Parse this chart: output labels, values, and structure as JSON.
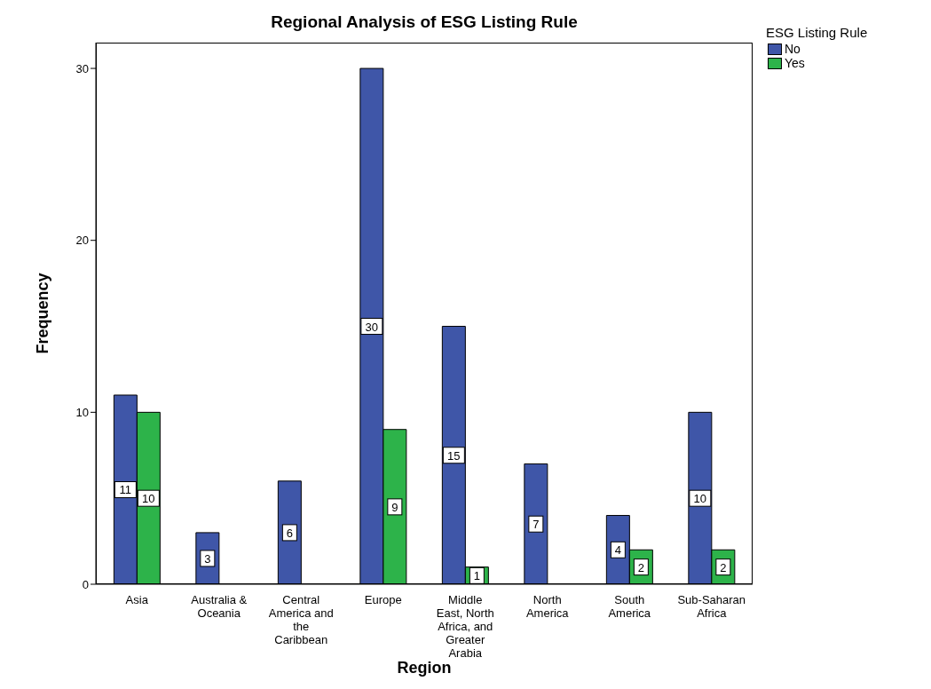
{
  "chart_data": {
    "type": "bar",
    "title": "Regional Analysis of ESG Listing Rule",
    "xlabel": "Region",
    "ylabel": "Frequency",
    "legend_title": "ESG Listing Rule",
    "legend": "top right",
    "data_labels": true,
    "grid": false,
    "categories": [
      "Asia",
      "Australia & Oceania",
      "Central America and the Caribbean",
      "Europe",
      "Middle East, North Africa, and Greater Arabia",
      "North America",
      "South America",
      "Sub-Saharan Africa"
    ],
    "series": [
      {
        "name": "No",
        "color": "#3f56a8",
        "values": [
          11,
          3,
          6,
          30,
          15,
          7,
          4,
          10
        ]
      },
      {
        "name": "Yes",
        "color": "#2db34a",
        "values": [
          10,
          null,
          null,
          9,
          1,
          null,
          2,
          2
        ]
      }
    ],
    "ylim": [
      0,
      31.5
    ],
    "yticks": [
      0,
      10,
      20,
      30
    ]
  }
}
